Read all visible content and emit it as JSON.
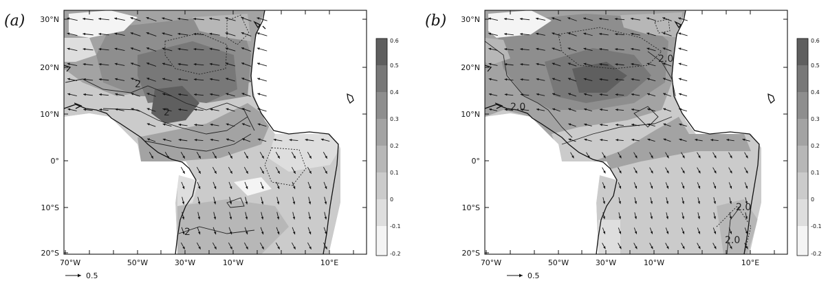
{
  "panels": [
    {
      "id": "a",
      "label": "(a)",
      "lat_ticks": [
        "30°N",
        "20°N",
        "10°N",
        "0°",
        "10°S",
        "20°S"
      ],
      "lon_ticks": [
        "70°W",
        "50°W",
        "30°W",
        "10°W",
        "10°E"
      ],
      "colorbar_ticks": [
        "0.6",
        "0.5",
        "0.4",
        "0.3",
        "0.2",
        "0.1",
        "0",
        "-0.1",
        "-0.2"
      ],
      "reference_vector": "0.5",
      "contour_labels": [
        "2",
        "2",
        "2"
      ]
    },
    {
      "id": "b",
      "label": "(b)",
      "lat_ticks": [
        "30°N",
        "20°N",
        "10°N",
        "0°",
        "10°S",
        "20°S"
      ],
      "lon_ticks": [
        "70°W",
        "50°W",
        "30°W",
        "10°W",
        "10°E"
      ],
      "colorbar_ticks": [
        "0.6",
        "0.5",
        "0.4",
        "0.3",
        "0.2",
        "0.1",
        "0",
        "-0.1",
        "-0.2"
      ],
      "reference_vector": "0.5",
      "contour_labels": [
        "2.0",
        "2.0",
        "2.0",
        "2.0"
      ]
    }
  ],
  "colors": {
    "shade_levels": [
      "#f4f4f4",
      "#dedede",
      "#cbcbcb",
      "#b7b7b7",
      "#a3a3a3",
      "#8e8e8e",
      "#787878",
      "#5f5f5f"
    ],
    "ink": "#111111"
  }
}
